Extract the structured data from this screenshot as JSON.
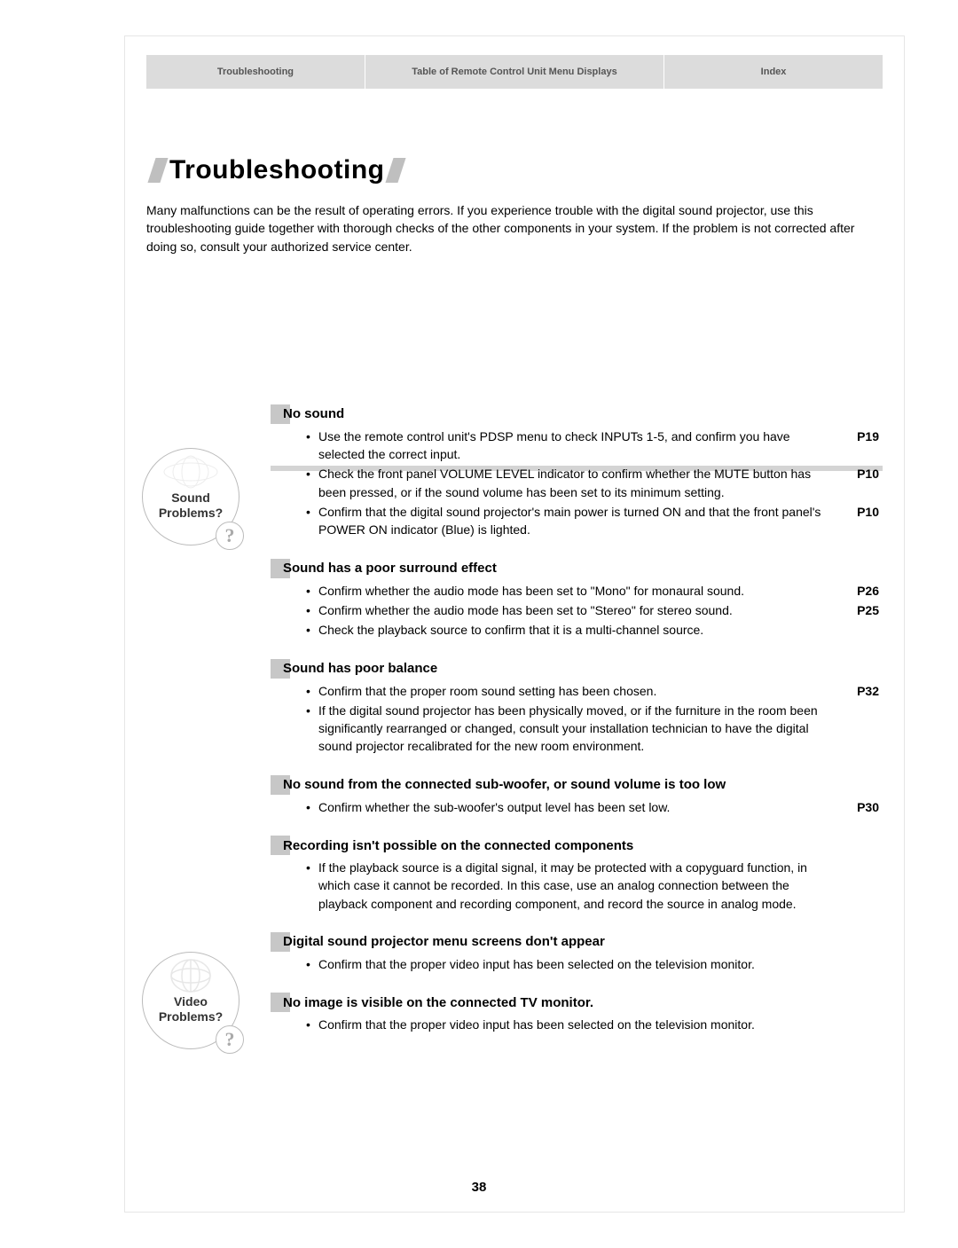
{
  "colors": {
    "nav_bg": "#dcdcdc",
    "square_bg": "#c7c7c7",
    "slash_bg": "#bfbfbf",
    "text": "#000000",
    "muted": "#aaaaaa"
  },
  "nav": {
    "tab1": "Troubleshooting",
    "tab2": "Table of Remote Control Unit Menu Displays",
    "tab3": "Index"
  },
  "title": "Troubleshooting",
  "intro": "Many malfunctions can be the result of operating errors. If you experience trouble with the digital sound projector, use this troubleshooting guide together with thorough checks of the other components in your system. If the problem is not corrected after doing so, consult your authorized service center.",
  "categories": {
    "sound": {
      "label_l1": "Sound",
      "label_l2": "Problems?",
      "q": "?"
    },
    "video": {
      "label_l1": "Video",
      "label_l2": "Problems?",
      "q": "?"
    }
  },
  "sections": [
    {
      "title": "No sound",
      "items": [
        {
          "text": "Use the remote control unit's PDSP menu to check INPUTs 1-5, and confirm you have selected the correct input.",
          "ref": "P19"
        },
        {
          "text": "Check the front panel VOLUME LEVEL indicator to confirm whether the MUTE button has been pressed, or if the sound volume has been set to its minimum setting.",
          "ref": "P10"
        },
        {
          "text": "Confirm that the digital sound projector's main power is turned ON and that the front panel's POWER ON indicator (Blue) is lighted.",
          "ref": "P10"
        }
      ]
    },
    {
      "title": "Sound has a poor surround effect",
      "items": [
        {
          "text": "Confirm whether the audio mode has been set to \"Mono\" for monaural sound.",
          "ref": "P26"
        },
        {
          "text": "Confirm whether the audio mode has been set to \"Stereo\" for stereo sound.",
          "ref": "P25"
        },
        {
          "text": "Check the playback source to confirm that it is a multi-channel source.",
          "ref": ""
        }
      ]
    },
    {
      "title": "Sound has poor balance",
      "items": [
        {
          "text": "Confirm that the proper room sound setting has been chosen.",
          "ref": "P32"
        },
        {
          "text": "If the digital sound projector has been physically moved, or if the furniture in the room been significantly rearranged or changed, consult your installation technician to have the digital sound projector recalibrated for the new room environment.",
          "ref": ""
        }
      ]
    },
    {
      "title": "No sound from the connected sub-woofer, or sound volume is too low",
      "items": [
        {
          "text": "Confirm whether the sub-woofer's output level has been set low.",
          "ref": "P30"
        }
      ]
    },
    {
      "title": "Recording isn't possible on the connected components",
      "items": [
        {
          "text": "If the playback source is a digital signal, it may be protected with a copyguard function, in which case it cannot be recorded. In this case, use an analog connection between the playback component and recording component, and record the source in analog mode.",
          "ref": ""
        }
      ]
    },
    {
      "title": "Digital sound projector menu screens don't appear",
      "items": [
        {
          "text": "Confirm that the proper video input has been selected on the television monitor.",
          "ref": ""
        }
      ]
    },
    {
      "title": "No image is visible on the connected TV monitor.",
      "items": [
        {
          "text": "Confirm that the proper video input has been selected on the television monitor.",
          "ref": ""
        }
      ]
    }
  ],
  "page_number": "38"
}
